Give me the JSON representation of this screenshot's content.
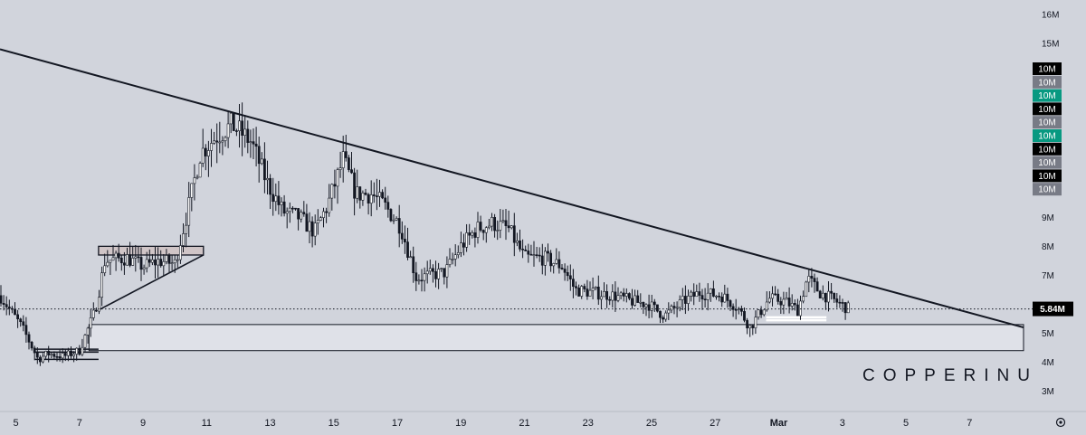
{
  "chart_data": {
    "type": "candlestick",
    "symbol": "COPPERINU",
    "y_axis": {
      "position": "right",
      "ticks": [
        {
          "v": 3000000,
          "label": "3M"
        },
        {
          "v": 4000000,
          "label": "4M"
        },
        {
          "v": 5000000,
          "label": "5M"
        },
        {
          "v": 7000000,
          "label": "7M"
        },
        {
          "v": 8000000,
          "label": "8M"
        },
        {
          "v": 9000000,
          "label": "9M"
        },
        {
          "v": 15000000,
          "label": "15M"
        },
        {
          "v": 16000000,
          "label": "16M"
        }
      ],
      "range": [
        2300000,
        16500000
      ]
    },
    "x_axis": {
      "ticks": [
        {
          "d": 5,
          "label": "5"
        },
        {
          "d": 7,
          "label": "7"
        },
        {
          "d": 9,
          "label": "9"
        },
        {
          "d": 11,
          "label": "11"
        },
        {
          "d": 13,
          "label": "13"
        },
        {
          "d": 15,
          "label": "15"
        },
        {
          "d": 17,
          "label": "17"
        },
        {
          "d": 19,
          "label": "19"
        },
        {
          "d": 21,
          "label": "21"
        },
        {
          "d": 23,
          "label": "23"
        },
        {
          "d": 25,
          "label": "25"
        },
        {
          "d": 27,
          "label": "27"
        },
        {
          "d": 29,
          "label": "Mar",
          "bold": true
        },
        {
          "d": 31,
          "label": "3"
        },
        {
          "d": 33,
          "label": "5"
        },
        {
          "d": 35,
          "label": "7"
        }
      ],
      "range": [
        4.5,
        36.9
      ]
    },
    "last_price": {
      "value": 5840000,
      "label": "5.84M"
    },
    "scale_tags": [
      {
        "label": "10M",
        "color": "#000000"
      },
      {
        "label": "10M",
        "color": "#787b86"
      },
      {
        "label": "10M",
        "color": "#089981"
      },
      {
        "label": "10M",
        "color": "#000000"
      },
      {
        "label": "10M",
        "color": "#787b86"
      },
      {
        "label": "10M",
        "color": "#089981"
      },
      {
        "label": "10M",
        "color": "#000000"
      },
      {
        "label": "10M",
        "color": "#787b86"
      },
      {
        "label": "10M",
        "color": "#000000"
      },
      {
        "label": "10M",
        "color": "#787b86"
      }
    ],
    "path": [
      [
        4.5,
        6.3
      ],
      [
        5.2,
        5.2
      ],
      [
        5.7,
        4.1
      ],
      [
        6.0,
        4.3
      ],
      [
        6.5,
        4.2
      ],
      [
        7.0,
        4.4
      ],
      [
        7.5,
        5.8
      ],
      [
        7.8,
        7.5
      ],
      [
        8.5,
        7.6
      ],
      [
        9.0,
        7.3
      ],
      [
        9.5,
        7.5
      ],
      [
        10.0,
        7.4
      ],
      [
        10.4,
        9.2
      ],
      [
        10.8,
        11.2
      ],
      [
        11.3,
        11.8
      ],
      [
        11.8,
        12.2
      ],
      [
        12.4,
        11.6
      ],
      [
        12.9,
        10.2
      ],
      [
        13.4,
        9.2
      ],
      [
        13.9,
        9.0
      ],
      [
        14.4,
        8.5
      ],
      [
        14.8,
        9.4
      ],
      [
        15.3,
        11.0
      ],
      [
        15.7,
        9.8
      ],
      [
        16.2,
        9.8
      ],
      [
        16.6,
        9.4
      ],
      [
        17.1,
        8.7
      ],
      [
        17.6,
        6.9
      ],
      [
        18.0,
        7.0
      ],
      [
        18.5,
        7.1
      ],
      [
        19.0,
        8.0
      ],
      [
        19.5,
        8.6
      ],
      [
        20.0,
        8.8
      ],
      [
        20.5,
        8.6
      ],
      [
        21.0,
        7.6
      ],
      [
        21.6,
        7.6
      ],
      [
        22.2,
        7.3
      ],
      [
        22.6,
        6.5
      ],
      [
        23.2,
        6.4
      ],
      [
        23.8,
        6.3
      ],
      [
        24.4,
        6.1
      ],
      [
        24.9,
        6.0
      ],
      [
        25.4,
        5.6
      ],
      [
        26.0,
        6.1
      ],
      [
        26.5,
        6.4
      ],
      [
        27.2,
        6.3
      ],
      [
        27.7,
        5.9
      ],
      [
        28.1,
        5.2
      ],
      [
        28.7,
        6.2
      ],
      [
        29.2,
        6.1
      ],
      [
        29.6,
        5.8
      ],
      [
        29.9,
        6.9
      ],
      [
        30.3,
        6.4
      ],
      [
        30.8,
        6.1
      ],
      [
        31.2,
        5.84
      ]
    ],
    "drawings": [
      {
        "name": "descending-trendline",
        "kind": "line",
        "from": [
          4.5,
          14.8
        ],
        "to": [
          36.7,
          5.2
        ]
      },
      {
        "name": "support-zone-box",
        "kind": "rect",
        "x": [
          7.3,
          36.7
        ],
        "y": [
          4.4,
          5.3
        ]
      },
      {
        "name": "ascending-trendline",
        "kind": "line",
        "from": [
          7.6,
          5.8
        ],
        "to": [
          10.9,
          7.7
        ]
      },
      {
        "name": "resistance-box",
        "kind": "rect",
        "x": [
          7.6,
          10.9
        ],
        "y": [
          7.7,
          8.0
        ]
      },
      {
        "name": "low-marker-1",
        "kind": "hline",
        "x": [
          5.6,
          7.6
        ],
        "y": 4.1
      },
      {
        "name": "low-marker-2",
        "kind": "hline",
        "x": [
          5.6,
          7.6
        ],
        "y": 4.35
      },
      {
        "name": "low-marker-3",
        "kind": "hline",
        "x": [
          5.6,
          7.6
        ],
        "y": 4.45
      },
      {
        "name": "highlight-line-1",
        "kind": "hline",
        "x": [
          28.6,
          30.5
        ],
        "y": 5.55,
        "color": "#ffffff"
      },
      {
        "name": "highlight-line-2",
        "kind": "hline",
        "x": [
          28.6,
          30.5
        ],
        "y": 5.45,
        "color": "#ffffff"
      }
    ],
    "colors": {
      "candle": "#131722",
      "background": "#d1d4dc",
      "zone_fill": "#dfe1e8",
      "last_price_bg": "#000000"
    }
  },
  "watermark": "COPPERINU",
  "settings_icon": "gear-icon"
}
